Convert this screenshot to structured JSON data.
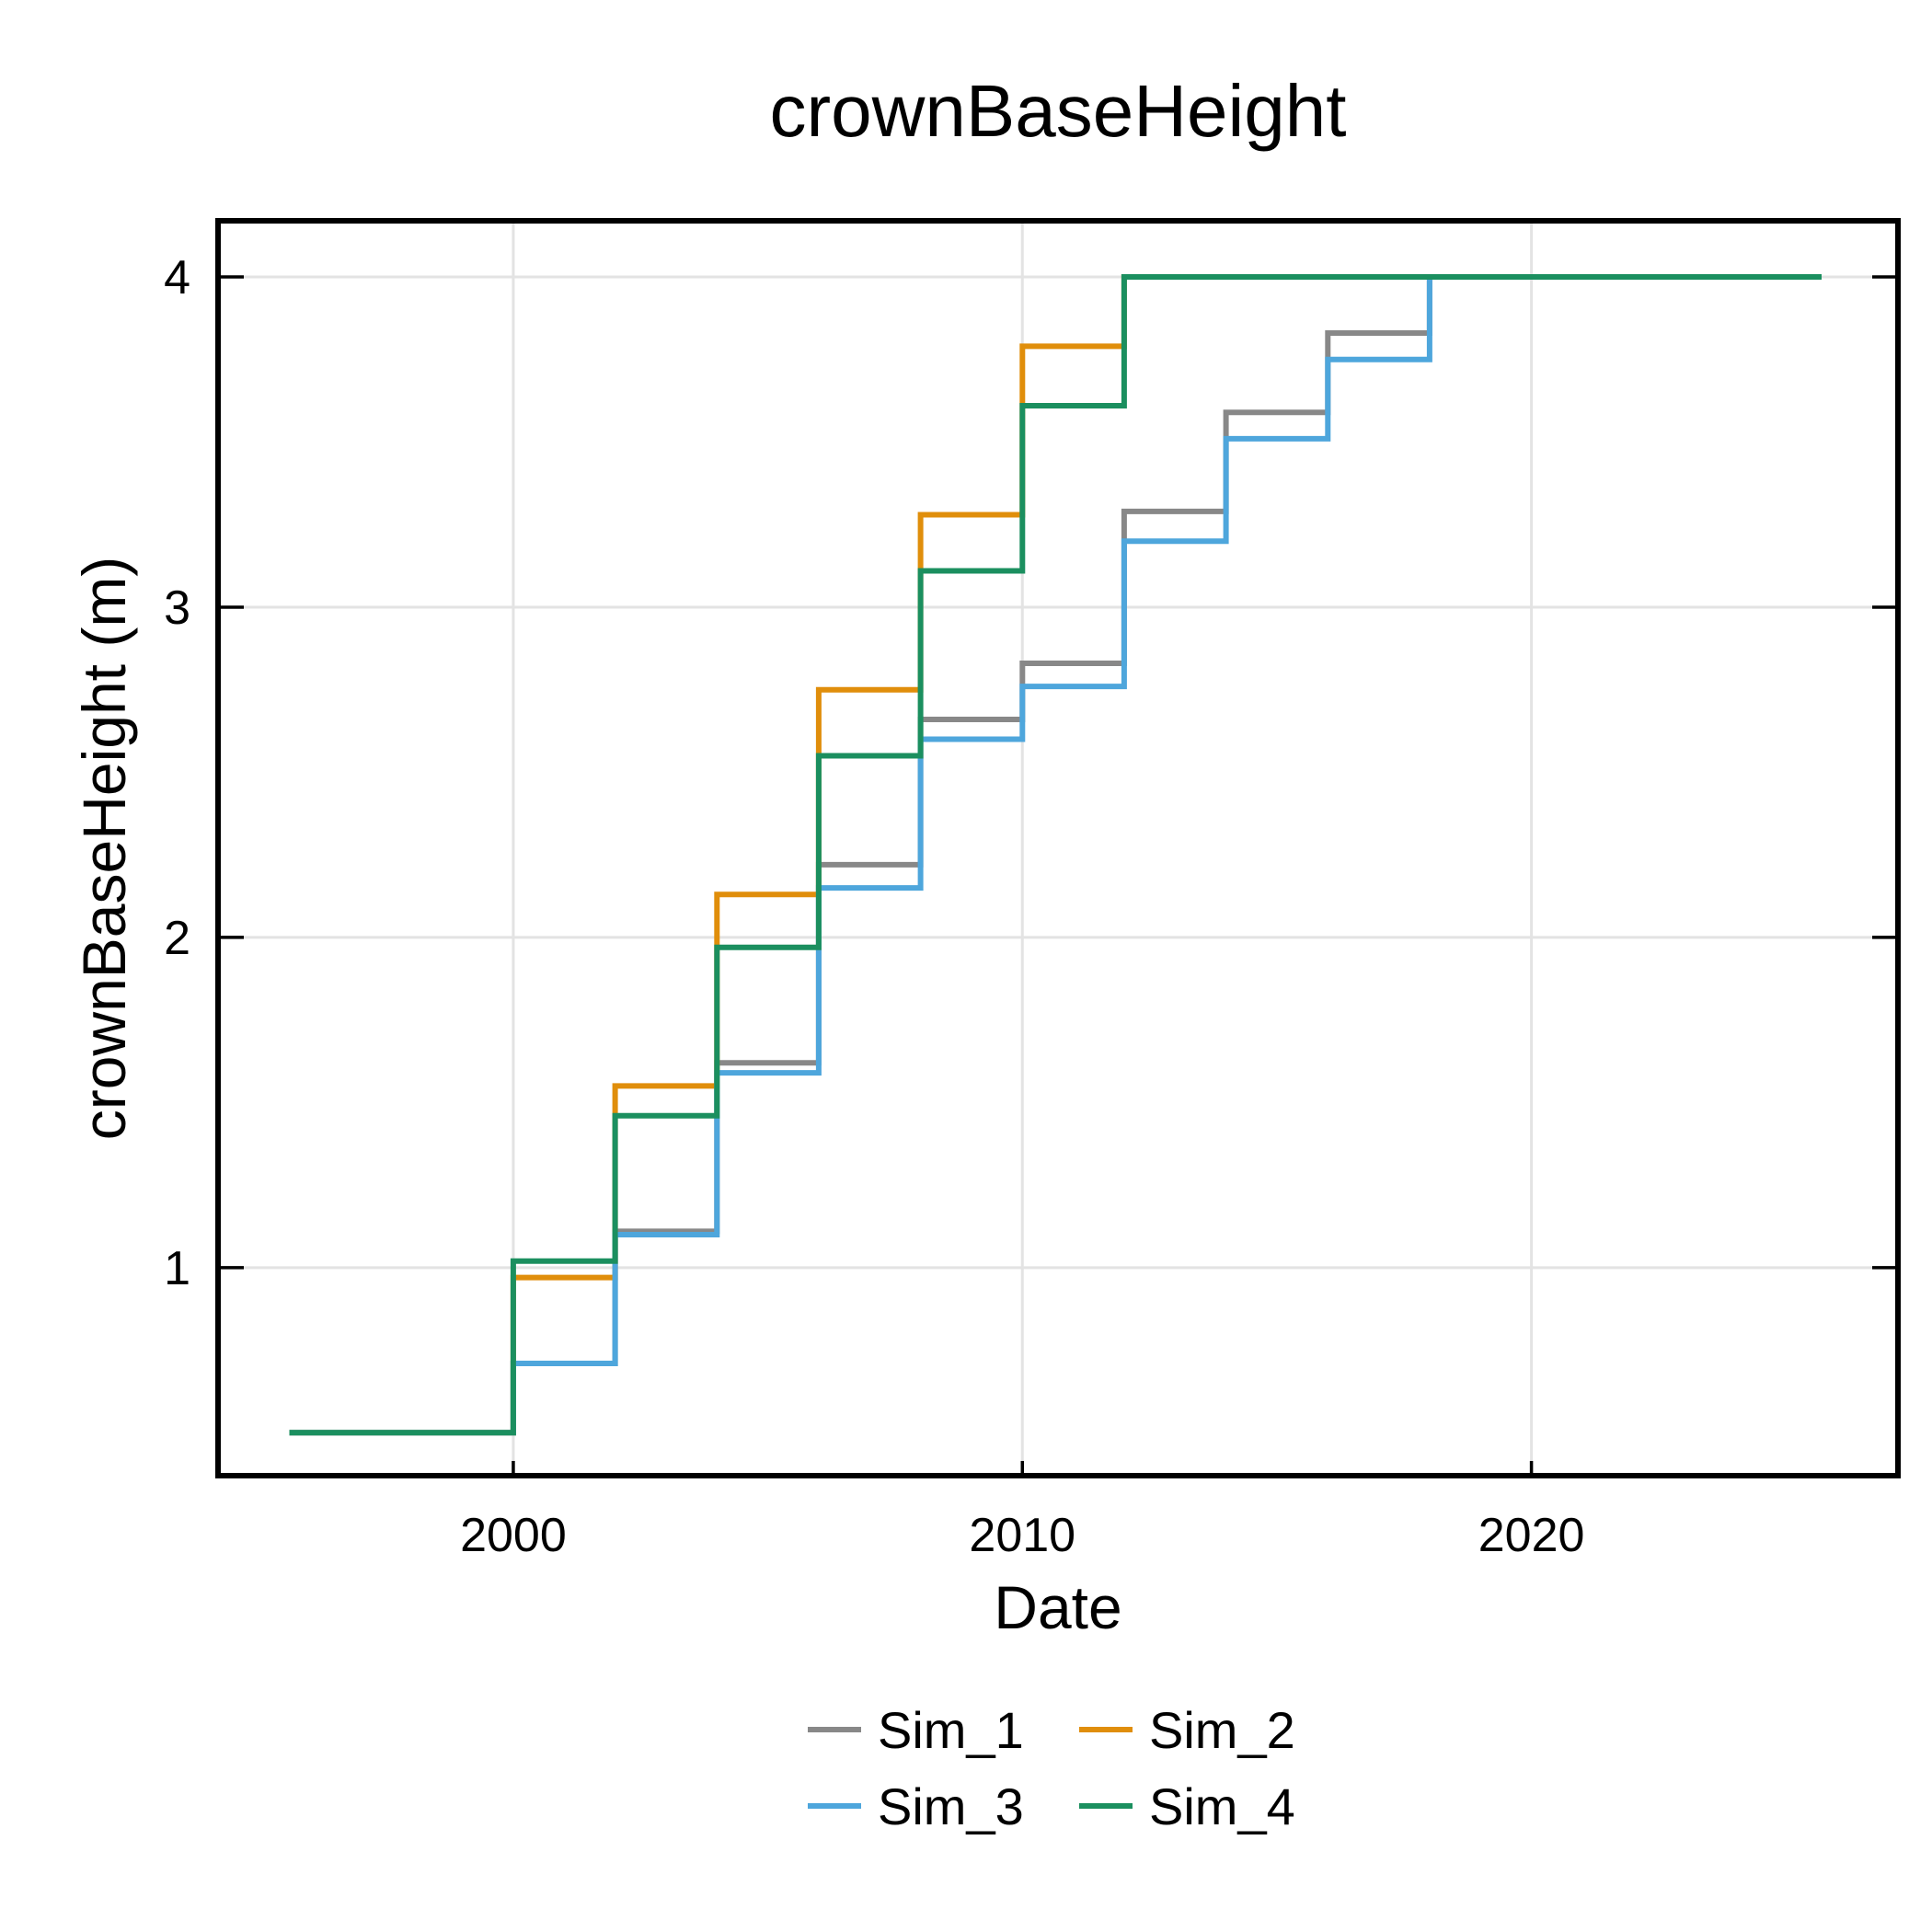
{
  "chart_data": {
    "type": "line",
    "step": true,
    "title": "crownBaseHeight",
    "xlabel": "Date",
    "ylabel": "crownBaseHeight (m)",
    "xlim": [
      1994.2,
      2027.2
    ],
    "ylim": [
      0.37,
      4.17
    ],
    "xticks": [
      2000,
      2010,
      2020
    ],
    "yticks": [
      1,
      2,
      3,
      4
    ],
    "grid": true,
    "legend_position": "bottom",
    "series": [
      {
        "name": "Sim_1",
        "color": "#888888",
        "x": [
          1995.6,
          2000,
          2002,
          2004,
          2006,
          2008,
          2010,
          2012,
          2014,
          2016,
          2018,
          2025.7
        ],
        "y": [
          0.5,
          0.71,
          1.11,
          1.62,
          2.22,
          2.66,
          2.83,
          3.29,
          3.59,
          3.83,
          4.0,
          4.0
        ]
      },
      {
        "name": "Sim_2",
        "color": "#e08e0b",
        "x": [
          1995.6,
          2000,
          2002,
          2004,
          2006,
          2008,
          2010,
          2012,
          2025.7
        ],
        "y": [
          0.5,
          0.97,
          1.55,
          2.13,
          2.75,
          3.28,
          3.79,
          4.0,
          4.0
        ]
      },
      {
        "name": "Sim_3",
        "color": "#4ea6dc",
        "x": [
          1995.6,
          2000,
          2002,
          2004,
          2006,
          2008,
          2010,
          2012,
          2014,
          2016,
          2018,
          2025.7
        ],
        "y": [
          0.5,
          0.71,
          1.1,
          1.59,
          2.15,
          2.6,
          2.76,
          3.2,
          3.51,
          3.75,
          4.0,
          4.0
        ]
      },
      {
        "name": "Sim_4",
        "color": "#1b8f5f",
        "x": [
          1995.6,
          2000,
          2002,
          2004,
          2006,
          2008,
          2010,
          2012,
          2025.7
        ],
        "y": [
          0.5,
          1.02,
          1.46,
          1.97,
          2.55,
          3.11,
          3.61,
          4.0,
          4.0
        ]
      }
    ],
    "legend_order": [
      0,
      1,
      2,
      3
    ]
  }
}
